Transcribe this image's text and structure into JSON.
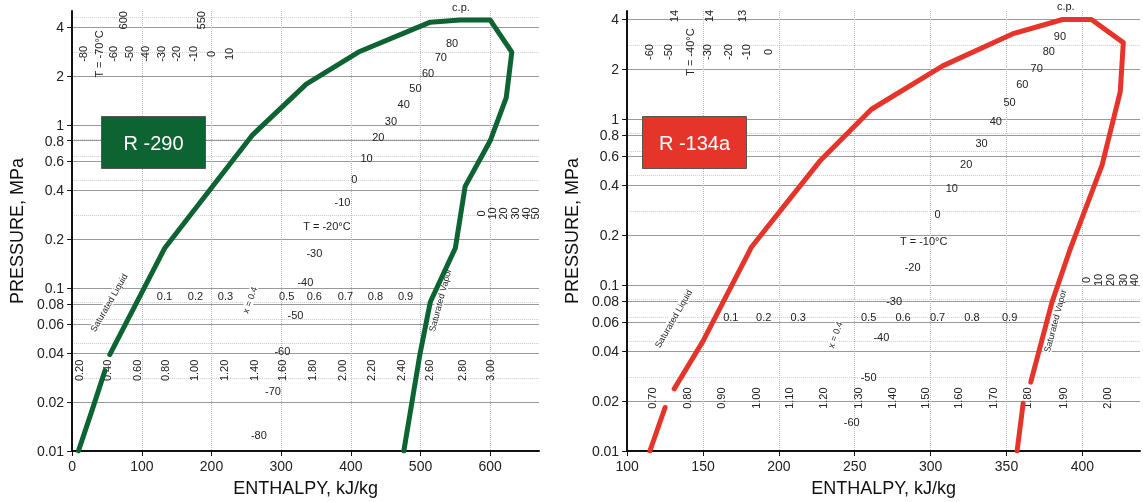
{
  "chart_data": [
    {
      "type": "line",
      "xlabel": "ENTHALPY, kJ/kg",
      "ylabel": "PRESSURE, MPa",
      "log": "y",
      "grid": true,
      "xlim": [
        0,
        670
      ],
      "xticks": [
        0,
        100,
        200,
        300,
        400,
        500,
        600
      ],
      "ylim": [
        0.01,
        5
      ],
      "yticks": [
        0.01,
        0.02,
        0.04,
        0.06,
        0.08,
        0.1,
        0.2,
        0.4,
        0.6,
        0.8,
        1,
        2,
        4
      ],
      "series": [
        {
          "color": "#0d6332",
          "x": [
            9,
            29,
            47,
            50,
            54,
            133,
            259,
            336,
            411,
            514,
            557,
            600,
            631,
            623,
            600,
            564,
            550,
            514,
            499,
            476
          ],
          "values": [
            0.01,
            0.018,
            0.031,
            null,
            0.039,
            0.176,
            0.87,
            1.78,
            2.8,
            4.27,
            4.4,
            4.4,
            2.8,
            1.47,
            0.8,
            0.42,
            0.176,
            0.082,
            0.039,
            0.01
          ]
        }
      ],
      "annotations": [
        "R -290",
        "c.p.",
        "T = -20°C",
        "x = 0.4",
        "T = -70°C",
        "Saturated Liquid",
        "Saturated Vapor",
        "80",
        "70",
        "60",
        "50",
        "40",
        "30",
        "20",
        "10",
        "0",
        "-10",
        "-30",
        "-40",
        "-50",
        "-60",
        "-70",
        "-80",
        "0.1",
        "0.2",
        "0.3",
        "0.5",
        "0.6",
        "0.7",
        "0.8",
        "0.9",
        "0.20",
        "0.40",
        "0.60",
        "0.80",
        "1.00",
        "1.20",
        "1.40",
        "1.60",
        "1.80",
        "2.00",
        "2.20",
        "2.40",
        "2.60",
        "2.80",
        "3.00",
        "-80",
        "-60",
        "600",
        "-50",
        "-40",
        "-30",
        "-20",
        "-10",
        "550",
        "0",
        "10",
        "0",
        "10",
        "20",
        "30",
        "40",
        "50"
      ]
    },
    {
      "type": "line",
      "xlabel": "ENTHALPY, kJ/kg",
      "ylabel": "PRESSURE, MPa",
      "log": "y",
      "grid": true,
      "xlim": [
        100,
        438
      ],
      "xticks": [
        100,
        150,
        200,
        250,
        300,
        350,
        400
      ],
      "ylim": [
        0.01,
        4.5
      ],
      "yticks": [
        0.01,
        0.02,
        0.04,
        0.06,
        0.08,
        0.1,
        0.2,
        0.4,
        0.6,
        0.8,
        1,
        2,
        4
      ],
      "series": [
        {
          "color": "#e5342a",
          "x": [
            115,
            125,
            128,
            131,
            150,
            182,
            227,
            261,
            308,
            355,
            387,
            406,
            427,
            425,
            413,
            392,
            380,
            366,
            363,
            361,
            357
          ],
          "values": [
            0.01,
            0.0183,
            null,
            0.0237,
            0.046,
            0.17,
            0.56,
            1.15,
            2.1,
            3.3,
            4.0,
            4.0,
            2.9,
            1.47,
            0.53,
            0.165,
            0.079,
            0.026,
            null,
            0.0194,
            0.01
          ]
        }
      ],
      "annotations": [
        "R -134a",
        "c.p.",
        "T = -10°C",
        "x = 0.4",
        "T = -40°C",
        "Saturated Liquid",
        "Saturated Vapor",
        "90",
        "80",
        "70",
        "60",
        "50",
        "40",
        "30",
        "20",
        "10",
        "0",
        "-20",
        "-30",
        "-40",
        "-50",
        "-60",
        "0.1",
        "0.2",
        "0.3",
        "0.5",
        "0.6",
        "0.7",
        "0.8",
        "0.9",
        "0.70",
        "0.80",
        "0.90",
        "1.00",
        "1.10",
        "1.20",
        "1.30",
        "1.40",
        "1.50",
        "1.60",
        "1.70",
        "1.80",
        "1.90",
        "2.00",
        "-60",
        "14",
        "-50",
        "-30",
        "14",
        "-20",
        "13",
        "-10",
        "0",
        "0",
        "10",
        "20",
        "30",
        "40"
      ]
    }
  ]
}
